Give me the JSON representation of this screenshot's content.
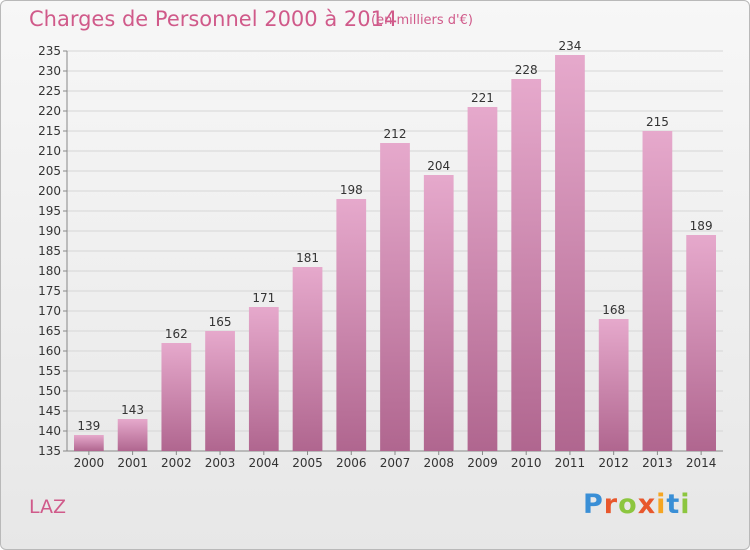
{
  "page": {
    "title": "Charges de Personnel 2000 à 2014",
    "title_unit": "(en milliers d'€)",
    "commune": "LAZ",
    "logo_text": "Proxiti"
  },
  "colors": {
    "title": "#d05a8a",
    "bar_light": "#e6a9cc",
    "bar_dark": "#b0668f",
    "logo_letters": [
      "#3a8fd6",
      "#e8572c",
      "#8cc63f",
      "#e8572c",
      "#f5a623",
      "#3a8fd6",
      "#8cc63f"
    ]
  },
  "chart_data": {
    "type": "bar",
    "title": "Charges de Personnel 2000 à 2014",
    "subtitle": "(en milliers d'€)",
    "categories": [
      "2000",
      "2001",
      "2002",
      "2003",
      "2004",
      "2005",
      "2006",
      "2007",
      "2008",
      "2009",
      "2010",
      "2011",
      "2012",
      "2013",
      "2014"
    ],
    "values": [
      139,
      143,
      162,
      165,
      171,
      181,
      198,
      212,
      204,
      221,
      228,
      234,
      168,
      215,
      189
    ],
    "xlabel": "",
    "ylabel": "",
    "ylim": [
      135,
      235
    ],
    "yticks": [
      135,
      140,
      145,
      150,
      155,
      160,
      165,
      170,
      175,
      180,
      185,
      190,
      195,
      200,
      205,
      210,
      215,
      220,
      225,
      230,
      235
    ],
    "grid": true,
    "data_labels": true
  }
}
